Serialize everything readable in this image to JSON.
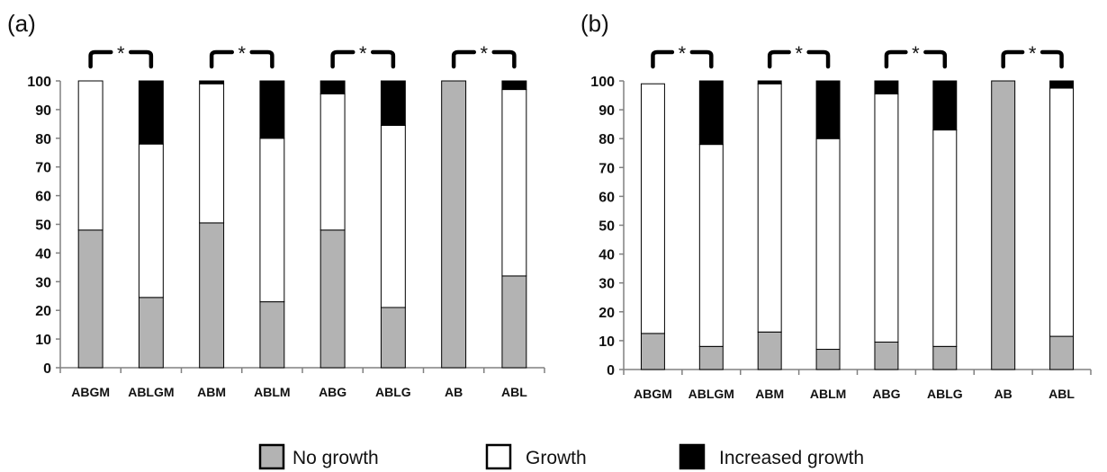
{
  "colors": {
    "no_growth": "#b3b3b3",
    "growth": "#ffffff",
    "increased_growth": "#000000",
    "axis": "#808080"
  },
  "legend": [
    {
      "key": "no_growth",
      "label": "No growth"
    },
    {
      "key": "growth",
      "label": "Growth"
    },
    {
      "key": "increased_growth",
      "label": "Increased growth"
    }
  ],
  "chart_data": [
    {
      "type": "bar",
      "stacked": true,
      "panel_label": "(a)",
      "categories": [
        "ABGM",
        "ABLGM",
        "ABM",
        "ABLM",
        "ABG",
        "ABLG",
        "AB",
        "ABL"
      ],
      "ylim": [
        0,
        100
      ],
      "yticks": [
        0,
        10,
        20,
        30,
        40,
        50,
        60,
        70,
        80,
        90,
        100
      ],
      "significance_marker": "*",
      "significance_pairs": [
        [
          "ABGM",
          "ABLGM"
        ],
        [
          "ABM",
          "ABLM"
        ],
        [
          "ABG",
          "ABLG"
        ],
        [
          "AB",
          "ABL"
        ]
      ],
      "series": [
        {
          "name": "No growth",
          "values": [
            48,
            24.5,
            50.5,
            23,
            48,
            21,
            100,
            32
          ]
        },
        {
          "name": "Growth",
          "values": [
            52,
            53.5,
            48.5,
            57,
            47.5,
            63.5,
            0,
            65
          ]
        },
        {
          "name": "Increased growth",
          "values": [
            0,
            22,
            1,
            20,
            4.5,
            15.5,
            0,
            3
          ]
        }
      ]
    },
    {
      "type": "bar",
      "stacked": true,
      "panel_label": "(b)",
      "categories": [
        "ABGM",
        "ABLGM",
        "ABM",
        "ABLM",
        "ABG",
        "ABLG",
        "AB",
        "ABL"
      ],
      "ylim": [
        0,
        100
      ],
      "yticks": [
        0,
        10,
        20,
        30,
        40,
        50,
        60,
        70,
        80,
        90,
        100
      ],
      "significance_marker": "*",
      "significance_pairs": [
        [
          "ABGM",
          "ABLGM"
        ],
        [
          "ABM",
          "ABLM"
        ],
        [
          "ABG",
          "ABLG"
        ],
        [
          "AB",
          "ABL"
        ]
      ],
      "series": [
        {
          "name": "No growth",
          "values": [
            12.5,
            8,
            13,
            7,
            9.5,
            8,
            100,
            11.5
          ]
        },
        {
          "name": "Growth",
          "values": [
            86.5,
            70,
            86,
            73,
            86,
            75,
            0,
            86
          ]
        },
        {
          "name": "Increased growth",
          "values": [
            0,
            22,
            1,
            20,
            4.5,
            17,
            0,
            2.5
          ]
        }
      ]
    }
  ]
}
